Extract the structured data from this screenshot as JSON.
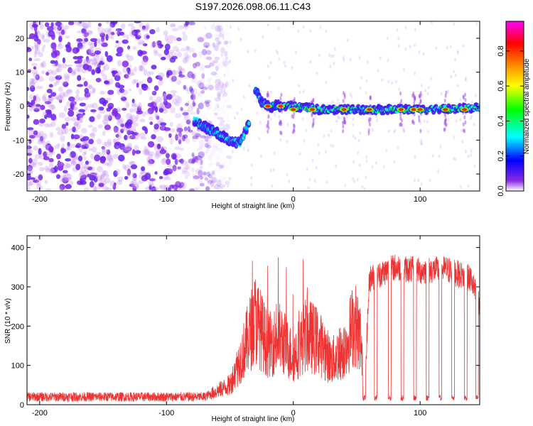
{
  "title": "S197.2026.098.06.11.C43",
  "chart_data": [
    {
      "type": "heatmap",
      "panel": "top",
      "xlabel": "Height of straight line (km)",
      "ylabel": "Frequency (Hz)",
      "xlim": [
        -210,
        147
      ],
      "ylim": [
        -25,
        25
      ],
      "xticks": [
        -200,
        -100,
        0,
        100
      ],
      "yticks": [
        -20,
        -10,
        0,
        10,
        20
      ],
      "colorbar": {
        "label": "Normalized spectral amplitude",
        "range": [
          0,
          0.97
        ],
        "ticks": [
          0.0,
          0.2,
          0.4,
          0.6,
          0.8
        ],
        "tick_labels": [
          "0.0",
          "0.2",
          "0.4",
          "0.6",
          "0.8"
        ],
        "colors": [
          "#ffffff",
          "#8a2be2",
          "#0000ff",
          "#00ffff",
          "#00ff00",
          "#ffff00",
          "#ff8000",
          "#ff0000",
          "#ff00ff"
        ]
      },
      "features": {
        "noise_region_x": [
          -210,
          -60
        ],
        "descending_track": [
          [
            -78,
            -4
          ],
          [
            -70,
            -6
          ],
          [
            -60,
            -8
          ],
          [
            -50,
            -10
          ],
          [
            -42,
            -11
          ],
          [
            -35,
            -5
          ]
        ],
        "rising_track": [
          [
            -30,
            5
          ],
          [
            -25,
            1
          ],
          [
            -20,
            0
          ],
          [
            -10,
            0
          ]
        ],
        "main_line": [
          [
            -10,
            0
          ],
          [
            0,
            0
          ],
          [
            20,
            -1
          ],
          [
            60,
            -1
          ],
          [
            100,
            -1
          ],
          [
            147,
            -0.5
          ]
        ],
        "peak_points_x": [
          -20,
          -10,
          0,
          15,
          40,
          60,
          85,
          95,
          100,
          120,
          135
        ]
      }
    },
    {
      "type": "line",
      "panel": "bottom",
      "xlabel": "Height of straight line (km)",
      "ylabel": "SNR (10 * v/v)",
      "xlim": [
        -210,
        147
      ],
      "ylim": [
        0,
        430
      ],
      "xticks": [
        -200,
        -100,
        0,
        100
      ],
      "yticks": [
        0,
        100,
        200,
        300,
        400
      ],
      "series": [
        {
          "name": "SNR",
          "color": "#ee3333",
          "profile": [
            [
              -210,
              20
            ],
            [
              -70,
              20
            ],
            [
              -50,
              50
            ],
            [
              -40,
              130
            ],
            [
              -30,
              220
            ],
            [
              -20,
              150
            ],
            [
              -10,
              170
            ],
            [
              0,
              120
            ],
            [
              10,
              180
            ],
            [
              20,
              160
            ],
            [
              30,
              110
            ],
            [
              40,
              140
            ],
            [
              48,
              210
            ],
            [
              53,
              170
            ],
            [
              56,
              20
            ],
            [
              60,
              320
            ],
            [
              80,
              350
            ],
            [
              100,
              340
            ],
            [
              120,
              345
            ],
            [
              140,
              320
            ],
            [
              147,
              250
            ]
          ],
          "dropouts_x": [
            56,
            65,
            76,
            86,
            96,
            106,
            116,
            126,
            136,
            145
          ]
        }
      ]
    }
  ]
}
